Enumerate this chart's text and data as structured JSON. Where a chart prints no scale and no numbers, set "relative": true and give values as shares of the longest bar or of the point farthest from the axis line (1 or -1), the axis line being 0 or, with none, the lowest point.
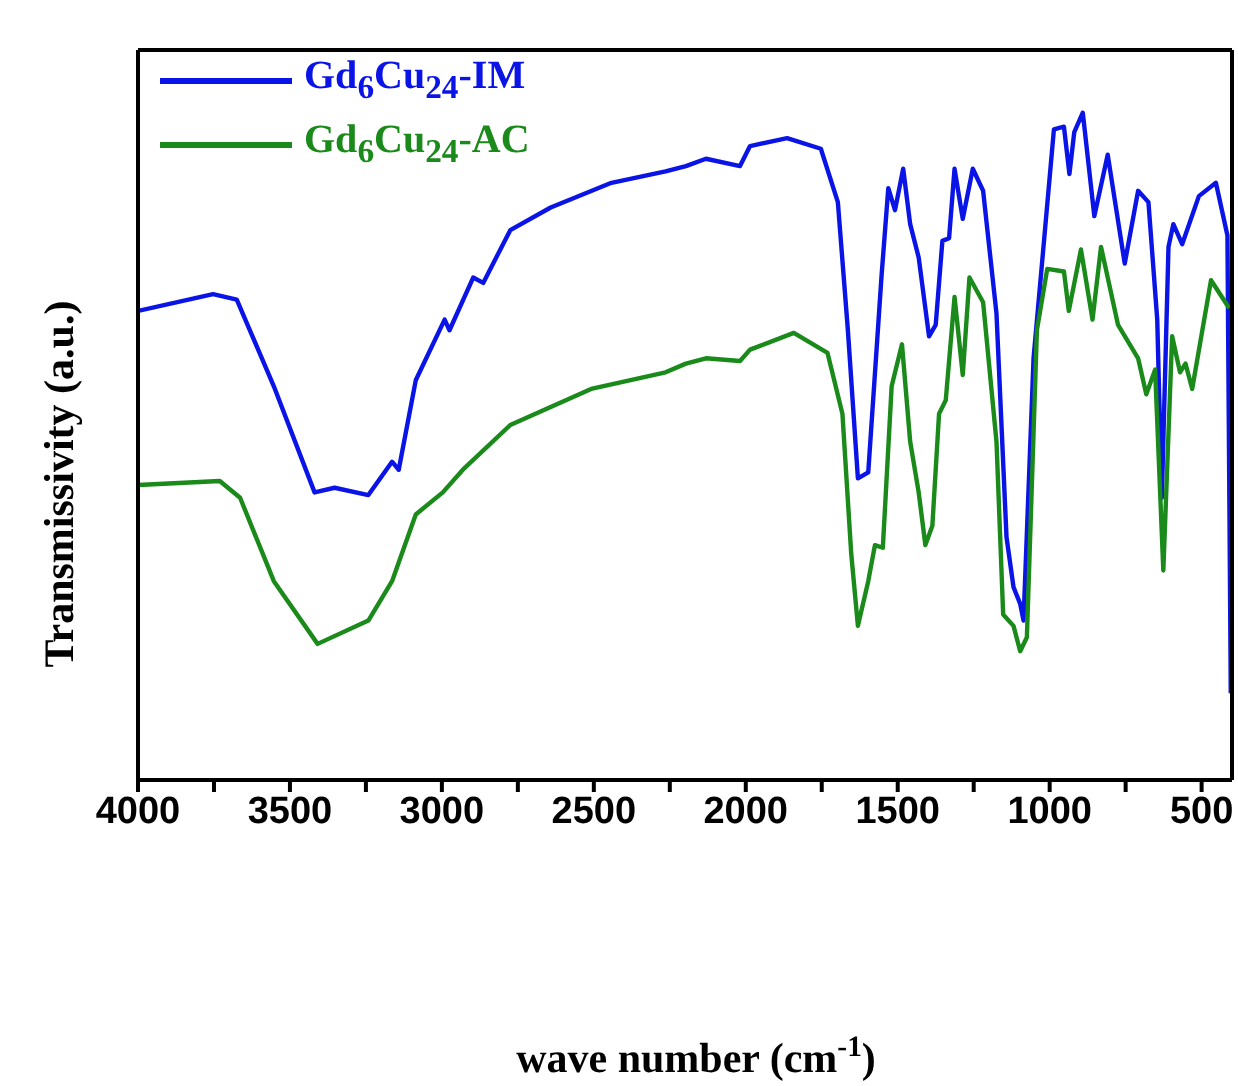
{
  "chart_data": {
    "type": "line",
    "relative": true,
    "xlabel": "wave number (cm$^{-1}$)",
    "ylabel": "Transmissivity (a.u.)",
    "xlim": [
      4000,
      400
    ],
    "xticks": [
      4000,
      {
        "value": 3750,
        "label": null
      },
      3500,
      {
        "value": 3250,
        "label": null
      },
      3000,
      {
        "value": 2750,
        "label": null
      },
      2500,
      {
        "value": 2250,
        "label": null
      },
      2000,
      {
        "value": 1750,
        "label": null
      },
      1500,
      {
        "value": 1250,
        "label": null
      },
      1000,
      {
        "value": 750,
        "label": null
      },
      500
    ],
    "legend": "top left",
    "grid": false,
    "marker": "none",
    "line_style": "solid",
    "series": [
      {
        "name": "Gd$_{6}$Cu$_{24}$-IM",
        "color": "#0a14e6",
        "x": [
          4000,
          3753,
          3675,
          3553,
          3419,
          3353,
          3242,
          3164,
          3142,
          3086,
          2991,
          2975,
          2897,
          2864,
          2775,
          2642,
          2442,
          2264,
          2197,
          2131,
          2019,
          1986,
          1864,
          1753,
          1697,
          1664,
          1631,
          1597,
          1553,
          1531,
          1509,
          1482,
          1459,
          1431,
          1397,
          1375,
          1353,
          1331,
          1313,
          1286,
          1253,
          1219,
          1175,
          1142,
          1119,
          1097,
          1086,
          1053,
          986,
          953,
          935,
          919,
          891,
          853,
          809,
          753,
          709,
          675,
          646,
          631,
          609,
          593,
          564,
          509,
          453,
          415,
          404
        ],
        "values": [
          0.703,
          0.728,
          0.72,
          0.59,
          0.431,
          0.438,
          0.427,
          0.477,
          0.465,
          0.599,
          0.69,
          0.674,
          0.753,
          0.745,
          0.824,
          0.858,
          0.895,
          0.912,
          0.92,
          0.931,
          0.92,
          0.95,
          0.962,
          0.946,
          0.866,
          0.674,
          0.452,
          0.461,
          0.757,
          0.887,
          0.854,
          0.916,
          0.833,
          0.783,
          0.665,
          0.682,
          0.808,
          0.812,
          0.916,
          0.841,
          0.916,
          0.883,
          0.699,
          0.364,
          0.289,
          0.264,
          0.239,
          0.632,
          0.975,
          0.979,
          0.908,
          0.971,
          1.0,
          0.845,
          0.937,
          0.774,
          0.883,
          0.866,
          0.69,
          0.423,
          0.799,
          0.833,
          0.803,
          0.875,
          0.895,
          0.816,
          0.13
        ]
      },
      {
        "name": "Gd$_{6}$Cu$_{24}$-AC",
        "color": "#1a8a1a",
        "x": [
          4000,
          3731,
          3664,
          3553,
          3409,
          3242,
          3164,
          3086,
          2997,
          2931,
          2775,
          2509,
          2264,
          2197,
          2131,
          2019,
          1986,
          1842,
          1731,
          1682,
          1653,
          1631,
          1597,
          1575,
          1549,
          1520,
          1486,
          1459,
          1431,
          1409,
          1386,
          1364,
          1342,
          1313,
          1286,
          1264,
          1219,
          1175,
          1153,
          1119,
          1097,
          1075,
          1042,
          1008,
          953,
          937,
          897,
          859,
          831,
          775,
          709,
          682,
          653,
          626,
          597,
          571,
          553,
          531,
          469,
          409
        ],
        "values": [
          0.442,
          0.448,
          0.423,
          0.298,
          0.204,
          0.239,
          0.298,
          0.398,
          0.431,
          0.465,
          0.532,
          0.586,
          0.611,
          0.624,
          0.632,
          0.628,
          0.645,
          0.67,
          0.64,
          0.549,
          0.339,
          0.231,
          0.298,
          0.352,
          0.348,
          0.59,
          0.653,
          0.507,
          0.431,
          0.352,
          0.381,
          0.549,
          0.569,
          0.724,
          0.607,
          0.753,
          0.716,
          0.507,
          0.248,
          0.231,
          0.193,
          0.214,
          0.674,
          0.766,
          0.762,
          0.703,
          0.795,
          0.69,
          0.799,
          0.682,
          0.632,
          0.578,
          0.615,
          0.314,
          0.665,
          0.611,
          0.624,
          0.586,
          0.749,
          0.707
        ]
      }
    ]
  }
}
